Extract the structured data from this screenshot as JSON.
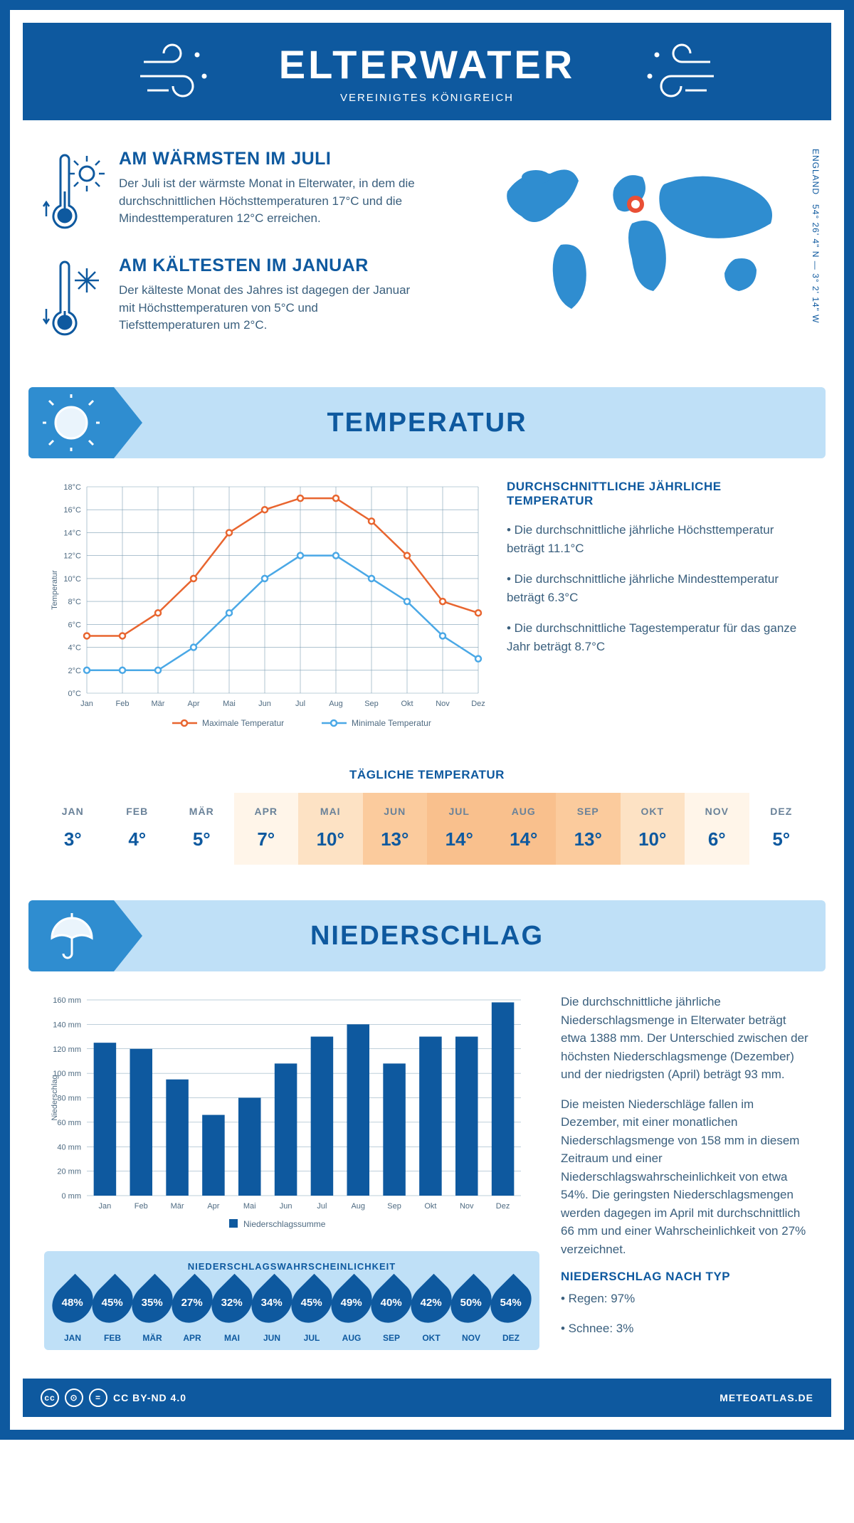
{
  "header": {
    "city": "ELTERWATER",
    "country": "VEREINIGTES KÖNIGREICH"
  },
  "warm": {
    "title": "AM WÄRMSTEN IM JULI",
    "text": "Der Juli ist der wärmste Monat in Elterwater, in dem die durchschnittlichen Höchsttemperaturen 17°C und die Mindesttemperaturen 12°C erreichen."
  },
  "cold": {
    "title": "AM KÄLTESTEN IM JANUAR",
    "text": "Der kälteste Monat des Jahres ist dagegen der Januar mit Höchsttemperaturen von 5°C und Tiefsttemperaturen um 2°C."
  },
  "coords": "54° 26' 4\" N — 3° 2' 14\" W",
  "region": "ENGLAND",
  "section_temp": "TEMPERATUR",
  "section_precip": "NIEDERSCHLAG",
  "temp_chart": {
    "type": "line",
    "months": [
      "Jan",
      "Feb",
      "Mär",
      "Apr",
      "Mai",
      "Jun",
      "Jul",
      "Aug",
      "Sep",
      "Okt",
      "Nov",
      "Dez"
    ],
    "max": [
      5,
      5,
      7,
      10,
      14,
      16,
      17,
      17,
      15,
      12,
      8,
      7
    ],
    "min": [
      2,
      2,
      2,
      4,
      7,
      10,
      12,
      12,
      10,
      8,
      5,
      3
    ],
    "max_color": "#e8652f",
    "min_color": "#4aa8e6",
    "ylim": [
      0,
      18
    ],
    "ytick_step": 2,
    "ylabel": "Temperatur",
    "grid_color": "#7e9fb4",
    "legend_max": "Maximale Temperatur",
    "legend_min": "Minimale Temperatur"
  },
  "temp_text": {
    "heading": "DURCHSCHNITTLICHE JÄHRLICHE TEMPERATUR",
    "b1": "• Die durchschnittliche jährliche Höchsttemperatur beträgt 11.1°C",
    "b2": "• Die durchschnittliche jährliche Mindesttemperatur beträgt 6.3°C",
    "b3": "• Die durchschnittliche Tagestemperatur für das ganze Jahr beträgt 8.7°C"
  },
  "daily_title": "TÄGLICHE TEMPERATUR",
  "daily": {
    "months": [
      "JAN",
      "FEB",
      "MÄR",
      "APR",
      "MAI",
      "JUN",
      "JUL",
      "AUG",
      "SEP",
      "OKT",
      "NOV",
      "DEZ"
    ],
    "values": [
      "3°",
      "4°",
      "5°",
      "7°",
      "10°",
      "13°",
      "14°",
      "14°",
      "13°",
      "10°",
      "6°",
      "5°"
    ],
    "bg": [
      "#ffffff",
      "#ffffff",
      "#ffffff",
      "#fff5e9",
      "#fde2c4",
      "#fbcb9d",
      "#f9c08d",
      "#f9c08d",
      "#fbcb9d",
      "#fde2c4",
      "#fff5e9",
      "#ffffff"
    ]
  },
  "precip_chart": {
    "type": "bar",
    "months": [
      "Jan",
      "Feb",
      "Mär",
      "Apr",
      "Mai",
      "Jun",
      "Jul",
      "Aug",
      "Sep",
      "Okt",
      "Nov",
      "Dez"
    ],
    "values": [
      125,
      120,
      95,
      66,
      80,
      108,
      130,
      140,
      108,
      130,
      130,
      158
    ],
    "bar_color": "#0e599f",
    "ylim": [
      0,
      160
    ],
    "ytick_step": 20,
    "ylabel": "Niederschlag",
    "grid_color": "#7e9fb4",
    "legend": "Niederschlagssumme"
  },
  "precip_text": {
    "p1": "Die durchschnittliche jährliche Niederschlagsmenge in Elterwater beträgt etwa 1388 mm. Der Unterschied zwischen der höchsten Niederschlagsmenge (Dezember) und der niedrigsten (April) beträgt 93 mm.",
    "p2": "Die meisten Niederschläge fallen im Dezember, mit einer monatlichen Niederschlagsmenge von 158 mm in diesem Zeitraum und einer Niederschlagswahrscheinlichkeit von etwa 54%. Die geringsten Niederschlagsmengen werden dagegen im April mit durchschnittlich 66 mm und einer Wahrscheinlichkeit von 27% verzeichnet.",
    "type_head": "NIEDERSCHLAG NACH TYP",
    "t1": "• Regen: 97%",
    "t2": "• Schnee: 3%"
  },
  "prob": {
    "title": "NIEDERSCHLAGSWAHRSCHEINLICHKEIT",
    "months": [
      "JAN",
      "FEB",
      "MÄR",
      "APR",
      "MAI",
      "JUN",
      "JUL",
      "AUG",
      "SEP",
      "OKT",
      "NOV",
      "DEZ"
    ],
    "values": [
      "48%",
      "45%",
      "35%",
      "27%",
      "32%",
      "34%",
      "45%",
      "49%",
      "40%",
      "42%",
      "50%",
      "54%"
    ]
  },
  "footer": {
    "license": "CC BY-ND 4.0",
    "site": "METEOATLAS.DE"
  }
}
